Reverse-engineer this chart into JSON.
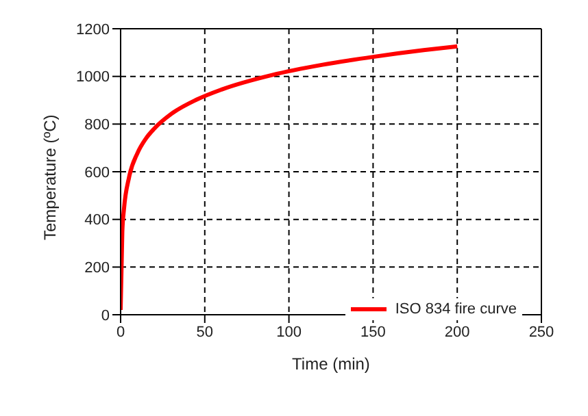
{
  "chart_data": {
    "type": "line",
    "xlabel": "Time (min)",
    "ylabel": "Temperature (ºC)",
    "series": [
      {
        "name": "ISO 834 fire curve",
        "color": "#ff0000",
        "x": [
          0,
          1,
          2,
          5,
          10,
          15,
          20,
          30,
          45,
          60,
          90,
          120,
          150,
          180,
          200
        ],
        "values": [
          20,
          349,
          444,
          576,
          678,
          739,
          781,
          842,
          902,
          945,
          1006,
          1049,
          1082,
          1110,
          1126
        ]
      }
    ],
    "xlim": [
      0,
      250
    ],
    "xticks": [
      0,
      50,
      100,
      150,
      200,
      250
    ],
    "ylim": [
      0,
      1200
    ],
    "yticks": [
      0,
      200,
      400,
      600,
      800,
      1000,
      1200
    ],
    "grid": true,
    "legend": "bottom right",
    "marker": "none",
    "line_style": "solid"
  }
}
